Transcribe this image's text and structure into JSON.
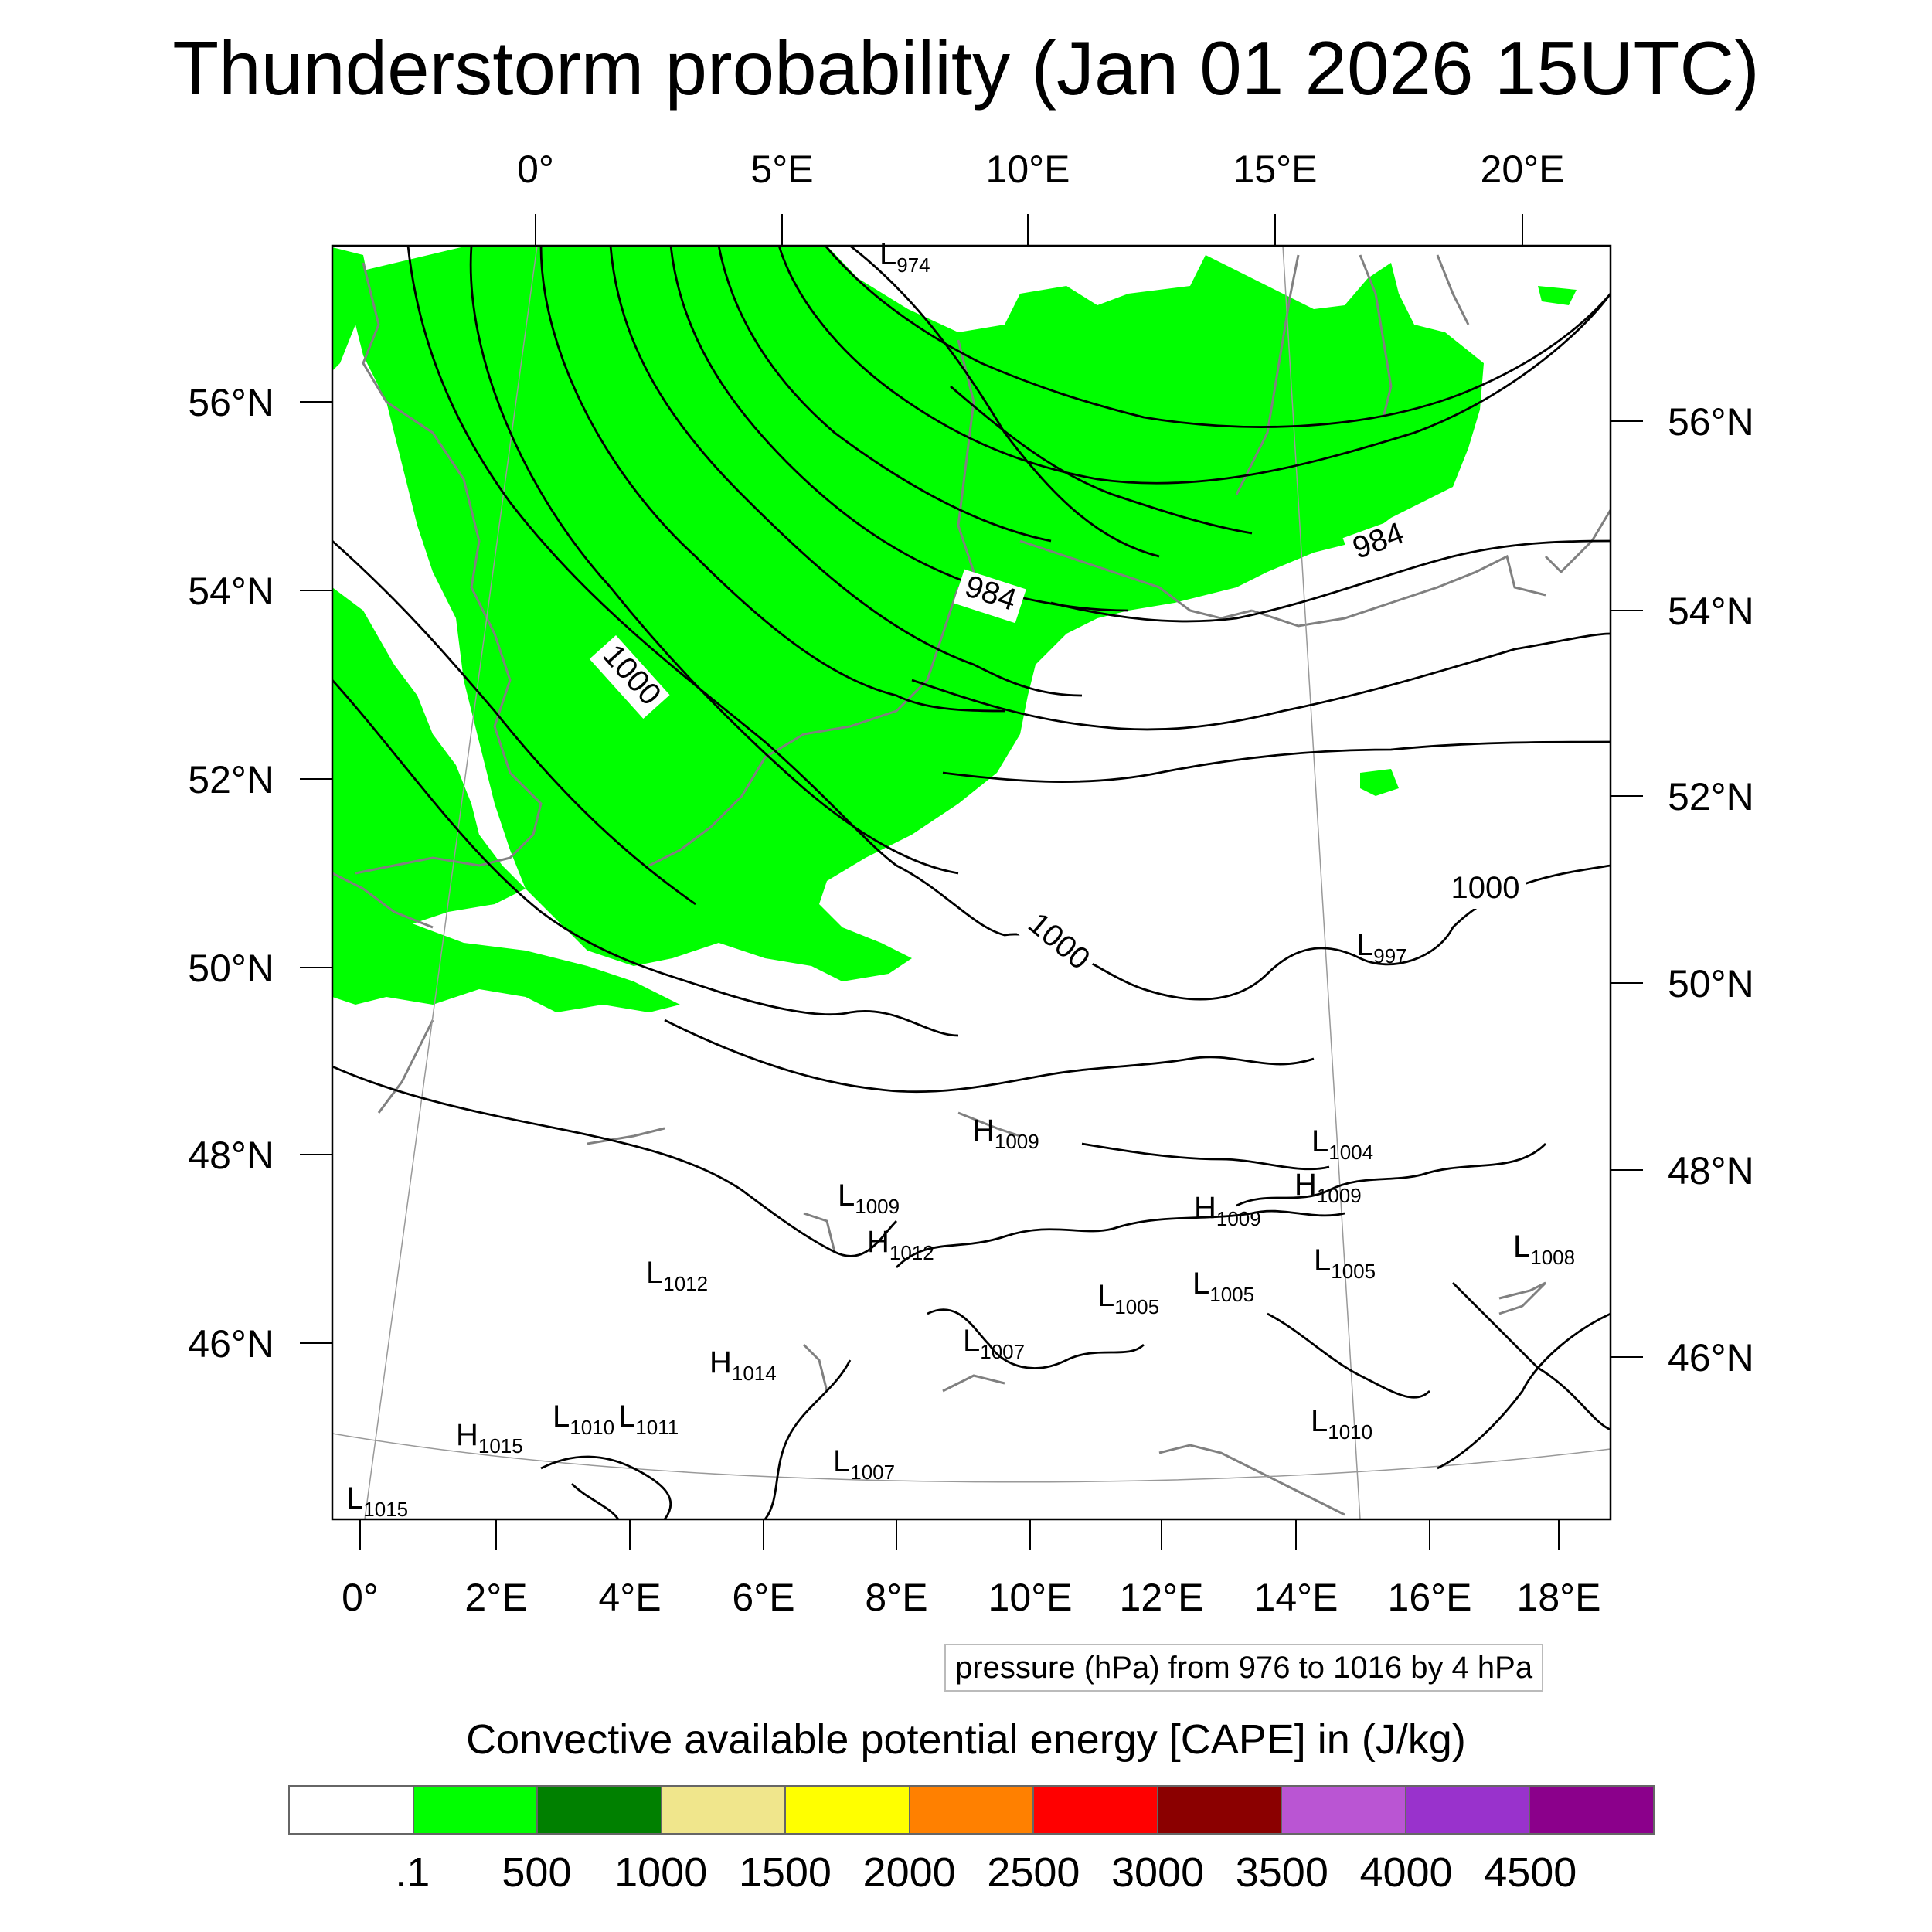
{
  "title": "Thunderstorm probability (Jan 01 2026 15UTC)",
  "map": {
    "lon_labels_top": [
      "0°",
      "5°E",
      "10°E",
      "15°E",
      "20°E"
    ],
    "lon_labels_bottom": [
      "0°",
      "2°E",
      "4°E",
      "6°E",
      "8°E",
      "10°E",
      "12°E",
      "14°E",
      "16°E",
      "18°E"
    ],
    "lat_labels_left": [
      "56°N",
      "54°N",
      "52°N",
      "50°N",
      "48°N",
      "46°N"
    ],
    "lat_labels_right": [
      "56°N",
      "54°N",
      "52°N",
      "50°N",
      "48°N",
      "46°N"
    ],
    "isobar_labels": [
      "1000",
      "984",
      "984",
      "1000",
      "1000"
    ],
    "pressure_centers": [
      {
        "t": "L",
        "v": "974"
      },
      {
        "t": "L",
        "v": "997"
      },
      {
        "t": "L",
        "v": "1004"
      },
      {
        "t": "H",
        "v": "1009"
      },
      {
        "t": "H",
        "v": "1009"
      },
      {
        "t": "L",
        "v": "1009"
      },
      {
        "t": "H",
        "v": "1012"
      },
      {
        "t": "L",
        "v": "1012"
      },
      {
        "t": "H",
        "v": "1009"
      },
      {
        "t": "L",
        "v": "1005"
      },
      {
        "t": "L",
        "v": "1005"
      },
      {
        "t": "L",
        "v": "1005"
      },
      {
        "t": "L",
        "v": "1008"
      },
      {
        "t": "L",
        "v": "1007"
      },
      {
        "t": "H",
        "v": "1014"
      },
      {
        "t": "L",
        "v": "1010"
      },
      {
        "t": "L",
        "v": "1011"
      },
      {
        "t": "H",
        "v": "1015"
      },
      {
        "t": "L",
        "v": "1010"
      },
      {
        "t": "L",
        "v": "1007"
      },
      {
        "t": "L",
        "v": "1015"
      }
    ],
    "colors": {
      "cape_fill": "#00ff00",
      "isobar": "#000000",
      "coast": "#808080",
      "graticule": "#999999"
    }
  },
  "pressure_note": "pressure (hPa) from 976 to 1016 by 4 hPa",
  "colorbar": {
    "title": "Convective available potential energy [CAPE] in (J/kg)",
    "colors": [
      "#ffffff",
      "#00ff00",
      "#008000",
      "#f0e68c",
      "#ffff00",
      "#ff8000",
      "#ff0000",
      "#8b0000",
      "#ba55d3",
      "#9932cc",
      "#8b008b"
    ],
    "labels": [
      ".1",
      "500",
      "1000",
      "1500",
      "2000",
      "2500",
      "3000",
      "3500",
      "4000",
      "4500"
    ]
  }
}
